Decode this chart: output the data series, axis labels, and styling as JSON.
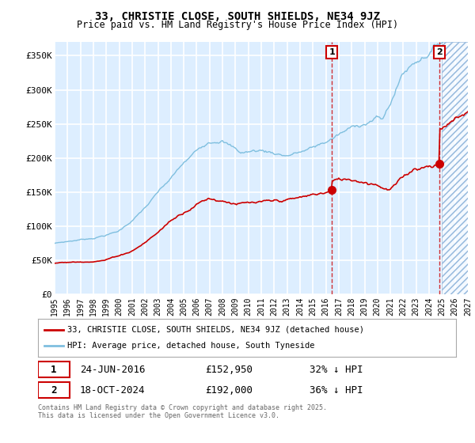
{
  "title": "33, CHRISTIE CLOSE, SOUTH SHIELDS, NE34 9JZ",
  "subtitle": "Price paid vs. HM Land Registry's House Price Index (HPI)",
  "ylim": [
    0,
    370000
  ],
  "yticks": [
    0,
    50000,
    100000,
    150000,
    200000,
    250000,
    300000,
    350000
  ],
  "ytick_labels": [
    "£0",
    "£50K",
    "£100K",
    "£150K",
    "£200K",
    "£250K",
    "£300K",
    "£350K"
  ],
  "hpi_color": "#7fbfdf",
  "price_color": "#cc0000",
  "sale1_year_f": 2016.46,
  "sale1_price": 152950,
  "sale2_year_f": 2024.79,
  "sale2_price": 192000,
  "legend_label1": "33, CHRISTIE CLOSE, SOUTH SHIELDS, NE34 9JZ (detached house)",
  "legend_label2": "HPI: Average price, detached house, South Tyneside",
  "sale1_date": "24-JUN-2016",
  "sale1_amount": "£152,950",
  "sale1_pct": "32% ↓ HPI",
  "sale2_date": "18-OCT-2024",
  "sale2_amount": "£192,000",
  "sale2_pct": "36% ↓ HPI",
  "footnote": "Contains HM Land Registry data © Crown copyright and database right 2025.\nThis data is licensed under the Open Government Licence v3.0.",
  "bg_color": "#ddeeff",
  "plot_bg": "#ddeeff",
  "grid_color": "#ffffff",
  "xmin": 1995,
  "xmax": 2027,
  "future_start": 2025
}
